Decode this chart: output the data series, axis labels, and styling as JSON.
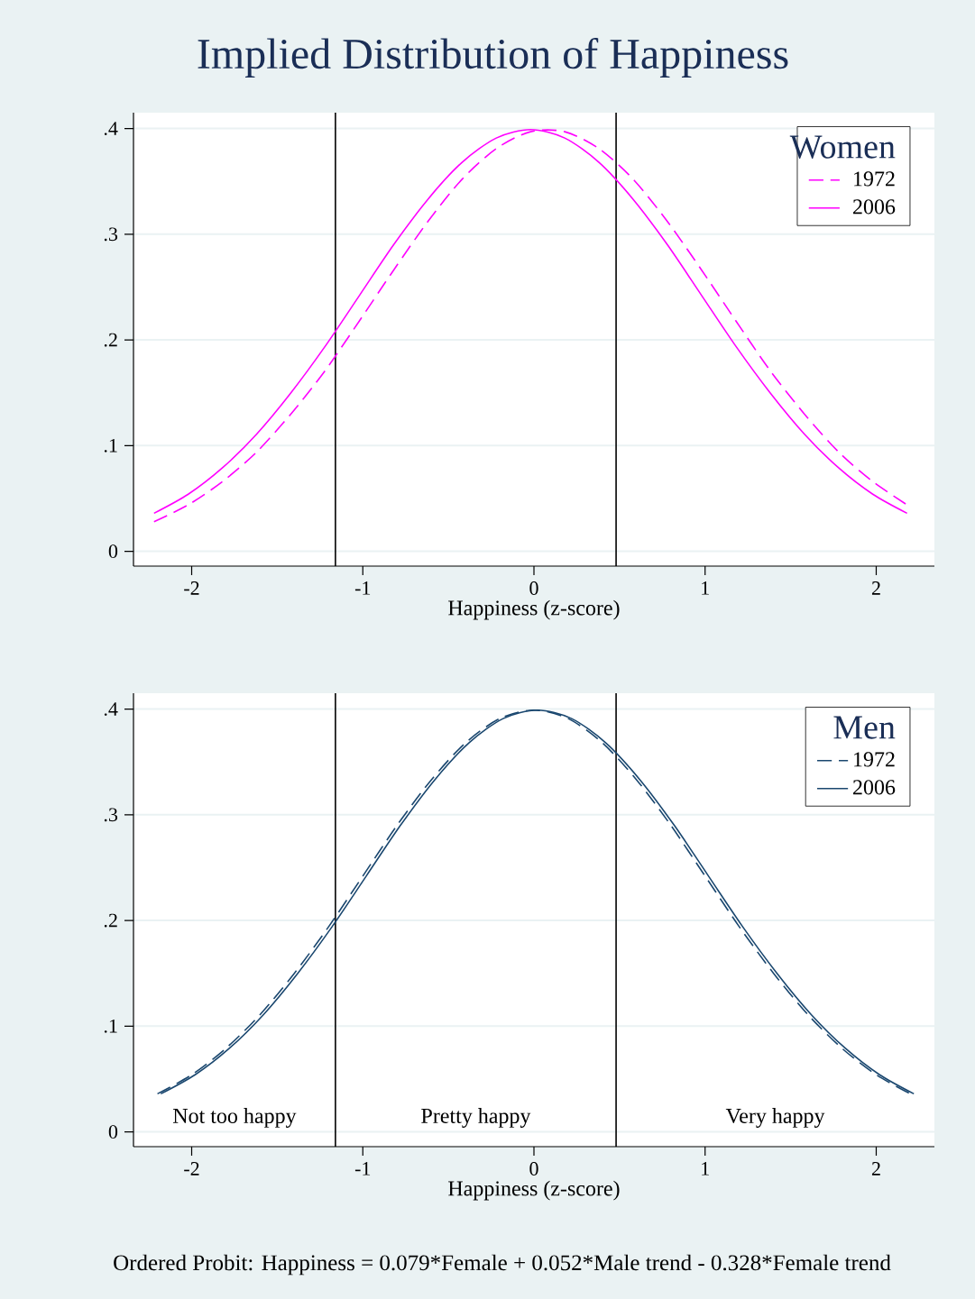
{
  "chart_data": [
    {
      "type": "line",
      "title": "Implied Distribution of Happiness",
      "xlabel": "Happiness (z-score)",
      "legend_title": "Women",
      "legend": "top right",
      "grid": "y",
      "xlim": [
        -2.34,
        2.34
      ],
      "ylim": [
        -0.014,
        0.415
      ],
      "xticks": [
        -2,
        -1,
        0,
        1,
        2
      ],
      "yticks": [
        0,
        {
          "value": 0.1,
          "label": ".1"
        },
        {
          "value": 0.2,
          "label": ".2"
        },
        {
          "value": 0.3,
          "label": ".3"
        },
        {
          "value": 0.4,
          "label": ".4"
        }
      ],
      "ref_lines": [
        {
          "axis": "x",
          "value": -1.16,
          "color": "#000000"
        },
        {
          "axis": "x",
          "value": 0.48,
          "color": "#000000"
        }
      ],
      "series": [
        {
          "name": "1972",
          "color": "#ff00ff",
          "line_style": "dashed",
          "x": [
            -2.22,
            -2.02,
            -1.82,
            -1.62,
            -1.42,
            -1.22,
            -1.02,
            -0.82,
            -0.62,
            -0.42,
            -0.22,
            -0.02,
            0.18,
            0.38,
            0.58,
            0.78,
            0.98,
            1.18,
            1.38,
            1.58,
            1.78,
            1.98,
            2.18
          ],
          "values": [
            0.028,
            0.044,
            0.066,
            0.094,
            0.13,
            0.171,
            0.218,
            0.266,
            0.312,
            0.352,
            0.381,
            0.397,
            0.397,
            0.381,
            0.352,
            0.312,
            0.266,
            0.218,
            0.171,
            0.13,
            0.094,
            0.066,
            0.044
          ]
        },
        {
          "name": "2006",
          "color": "#ff00ff",
          "line_style": "solid",
          "x": [
            -2.22,
            -2.02,
            -1.82,
            -1.62,
            -1.42,
            -1.22,
            -1.02,
            -0.82,
            -0.62,
            -0.42,
            -0.22,
            -0.02,
            0.18,
            0.38,
            0.58,
            0.78,
            0.98,
            1.18,
            1.38,
            1.58,
            1.78,
            1.98,
            2.18
          ],
          "values": [
            0.036,
            0.054,
            0.079,
            0.111,
            0.15,
            0.194,
            0.242,
            0.29,
            0.333,
            0.368,
            0.391,
            0.399,
            0.391,
            0.368,
            0.333,
            0.29,
            0.242,
            0.194,
            0.15,
            0.111,
            0.079,
            0.054,
            0.036
          ]
        }
      ]
    },
    {
      "type": "line",
      "xlabel": "Happiness (z-score)",
      "legend_title": "Men",
      "legend": "top right",
      "grid": "y",
      "xlim": [
        -2.34,
        2.34
      ],
      "ylim": [
        -0.014,
        0.415
      ],
      "xticks": [
        -2,
        -1,
        0,
        1,
        2
      ],
      "yticks": [
        0,
        {
          "value": 0.1,
          "label": ".1"
        },
        {
          "value": 0.2,
          "label": ".2"
        },
        {
          "value": 0.3,
          "label": ".3"
        },
        {
          "value": 0.4,
          "label": ".4"
        }
      ],
      "ref_lines": [
        {
          "axis": "x",
          "value": -1.16,
          "color": "#000000"
        },
        {
          "axis": "x",
          "value": 0.48,
          "color": "#000000"
        }
      ],
      "annotations": [
        "Not too happy",
        "Pretty happy",
        "Very happy",
        "Ordered Probit: Happiness = 0.079*Female + 0.052*Male trend - 0.328*Female trend"
      ],
      "series": [
        {
          "name": "1972",
          "color": "#1a476f",
          "line_style": "dashed",
          "x": [
            -2.2,
            -2.0,
            -1.8,
            -1.6,
            -1.4,
            -1.2,
            -1.0,
            -0.8,
            -0.6,
            -0.4,
            -0.2,
            0.0,
            0.2,
            0.4,
            0.6,
            0.8,
            1.0,
            1.2,
            1.4,
            1.6,
            1.8,
            2.0,
            2.2
          ],
          "values": [
            0.036,
            0.054,
            0.079,
            0.111,
            0.15,
            0.194,
            0.242,
            0.29,
            0.333,
            0.368,
            0.391,
            0.399,
            0.391,
            0.368,
            0.333,
            0.29,
            0.242,
            0.194,
            0.15,
            0.111,
            0.079,
            0.054,
            0.036
          ]
        },
        {
          "name": "2006",
          "color": "#1a476f",
          "line_style": "solid",
          "x": [
            -2.18,
            -1.98,
            -1.78,
            -1.58,
            -1.38,
            -1.18,
            -0.98,
            -0.78,
            -0.58,
            -0.38,
            -0.18,
            0.02,
            0.22,
            0.42,
            0.62,
            0.82,
            1.02,
            1.22,
            1.42,
            1.62,
            1.82,
            2.02,
            2.22
          ],
          "values": [
            0.036,
            0.054,
            0.079,
            0.111,
            0.15,
            0.194,
            0.242,
            0.29,
            0.333,
            0.368,
            0.391,
            0.399,
            0.391,
            0.368,
            0.333,
            0.29,
            0.242,
            0.194,
            0.15,
            0.111,
            0.079,
            0.054,
            0.036
          ]
        }
      ]
    }
  ]
}
